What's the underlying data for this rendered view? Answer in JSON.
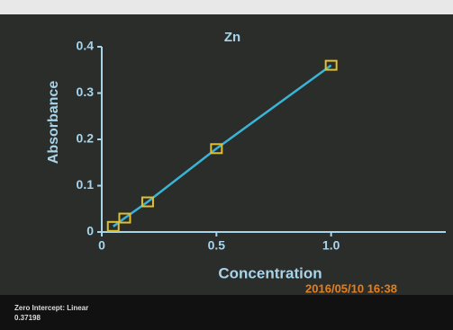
{
  "chart_data": {
    "type": "line",
    "title": "Zn",
    "x_label": "Concentration",
    "y_label": "Absorbance",
    "x": [
      0.05,
      0.1,
      0.2,
      0.5,
      1.0
    ],
    "series": [
      {
        "name": "Zn",
        "color": "#3ab4d6",
        "marker_color": "#e0c030",
        "values": [
          0.012,
          0.03,
          0.065,
          0.18,
          0.36
        ]
      }
    ],
    "xlim": [
      0,
      1.5
    ],
    "xticks": [
      0,
      0.5,
      {
        "value": 1.0,
        "label": "1.0"
      }
    ],
    "ylim": [
      0,
      0.4
    ],
    "yticks": [
      0,
      0.1,
      0.2,
      0.3,
      0.4
    ],
    "annotations": [
      "2016/05/10  16:38",
      "Zero Intercept: Linear",
      "0.37198"
    ]
  }
}
